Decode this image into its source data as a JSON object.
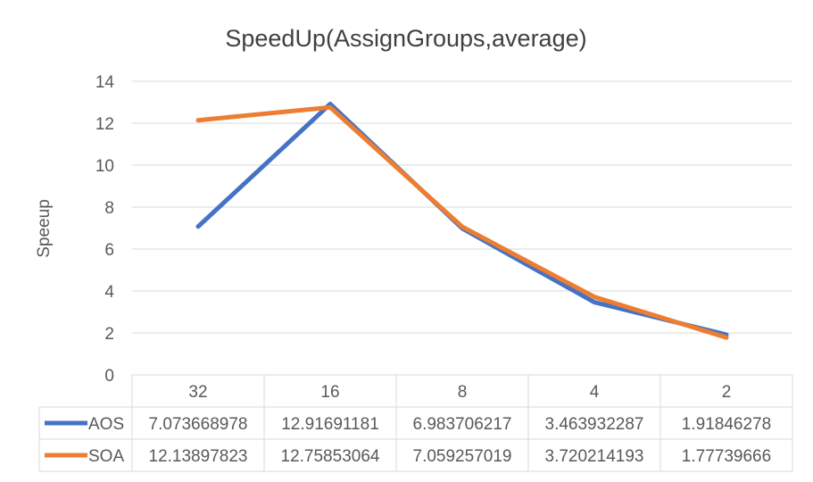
{
  "chart_data": {
    "type": "line",
    "title": "SpeedUp(AssignGroups,average)",
    "xlabel": "",
    "ylabel": "Speeup",
    "categories": [
      "32",
      "16",
      "8",
      "4",
      "2"
    ],
    "ylim": [
      0,
      14
    ],
    "yticks": [
      0,
      2,
      4,
      6,
      8,
      10,
      12,
      14
    ],
    "grid": true,
    "legend": "data-table",
    "series": [
      {
        "name": "AOS",
        "color": "#4472C4",
        "values": [
          7.073668978,
          12.91691181,
          6.983706217,
          3.463932287,
          1.91846278
        ],
        "labels": [
          "7.073668978",
          "12.91691181",
          "6.983706217",
          "3.463932287",
          "1.91846278"
        ]
      },
      {
        "name": "SOA",
        "color": "#ED7D31",
        "values": [
          12.13897823,
          12.75853064,
          7.059257019,
          3.720214193,
          1.77739666
        ],
        "labels": [
          "12.13897823",
          "12.75853064",
          "7.059257019",
          "3.720214193",
          "1.77739666"
        ]
      }
    ]
  }
}
